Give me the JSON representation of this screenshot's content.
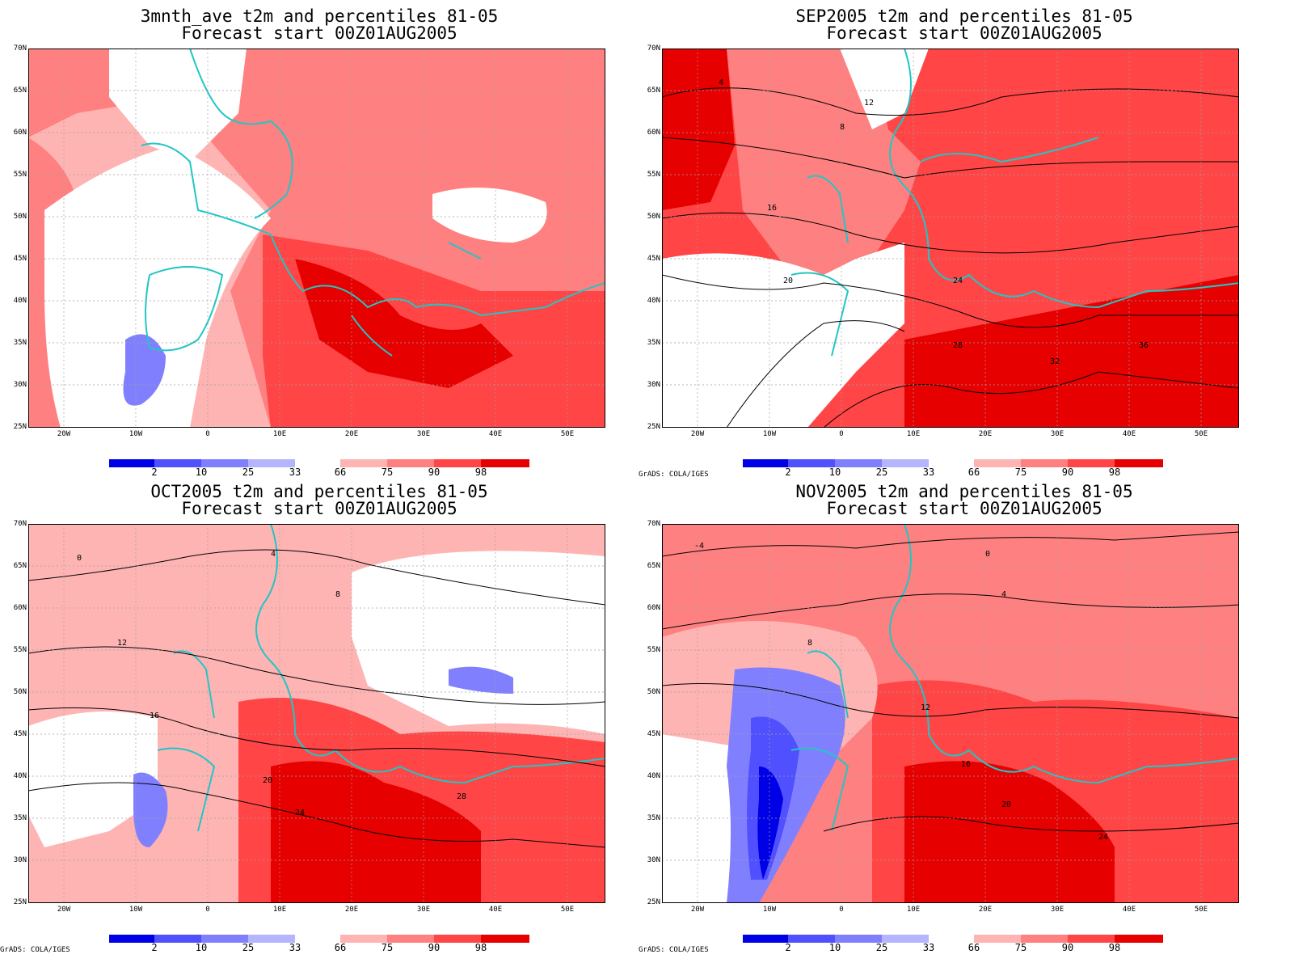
{
  "colors": {
    "coastline": "#23c5c5",
    "contour": "#000000",
    "grid": "#a0a0a0",
    "cold": [
      "#0000e6",
      "#5050ff",
      "#8080ff",
      "#b4b4ff"
    ],
    "warm": [
      "#ffb4b4",
      "#ff8080",
      "#ff4545",
      "#e60000"
    ]
  },
  "colorbar": {
    "labels": [
      "2",
      "10",
      "25",
      "33",
      "66",
      "75",
      "90",
      "98"
    ]
  },
  "credit": "GrADS: COLA/IGES",
  "lat_labels": [
    "70N",
    "65N",
    "60N",
    "55N",
    "50N",
    "45N",
    "40N",
    "35N",
    "30N",
    "25N"
  ],
  "lon_labels": [
    "20W",
    "10W",
    "0",
    "10E",
    "20E",
    "30E",
    "40E",
    "50E"
  ],
  "panels": [
    {
      "title1": "3mnth_ave t2m and percentiles 81-05",
      "title2": "Forecast start 00Z01AUG2005",
      "contours": []
    },
    {
      "title1": "SEP2005 t2m and percentiles 81-05",
      "title2": "Forecast start 00Z01AUG2005",
      "contours": [
        "4",
        "8",
        "12",
        "16",
        "20",
        "24",
        "28",
        "32",
        "36"
      ]
    },
    {
      "title1": "OCT2005 t2m and percentiles 81-05",
      "title2": "Forecast start 00Z01AUG2005",
      "contours": [
        "0",
        "4",
        "8",
        "12",
        "16",
        "20",
        "24",
        "28"
      ]
    },
    {
      "title1": "NOV2005 t2m and percentiles 81-05",
      "title2": "Forecast start 00Z01AUG2005",
      "contours": [
        "-4",
        "0",
        "4",
        "8",
        "12",
        "16",
        "20",
        "24"
      ]
    }
  ]
}
